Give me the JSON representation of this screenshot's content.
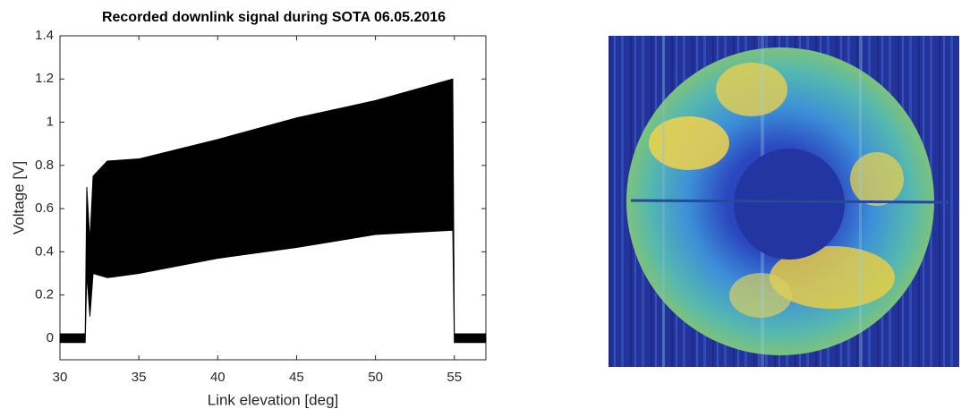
{
  "chart_data": {
    "type": "band",
    "title": "Recorded downlink signal during SOTA 06.05.2016",
    "x_label": "Link elevation [deg]",
    "y_label": "Voltage [V]",
    "x": [
      30,
      31.6,
      31.7,
      31.9,
      32.1,
      33,
      35,
      40,
      45,
      50,
      54.9,
      55,
      57
    ],
    "upper": [
      0.02,
      0.02,
      0.7,
      0.45,
      0.75,
      0.82,
      0.83,
      0.92,
      1.02,
      1.1,
      1.2,
      0.02,
      0.02
    ],
    "lower": [
      -0.02,
      -0.02,
      0.3,
      0.1,
      0.3,
      0.28,
      0.3,
      0.37,
      0.42,
      0.48,
      0.5,
      -0.02,
      -0.02
    ],
    "color": "#000000",
    "xlim": [
      30,
      57
    ],
    "ylim": [
      -0.1,
      1.4
    ],
    "xticks": [
      30,
      35,
      40,
      45,
      50,
      55
    ],
    "yticks": [
      0,
      0.2,
      0.4,
      0.6,
      0.8,
      1,
      1.2,
      1.4
    ]
  }
}
